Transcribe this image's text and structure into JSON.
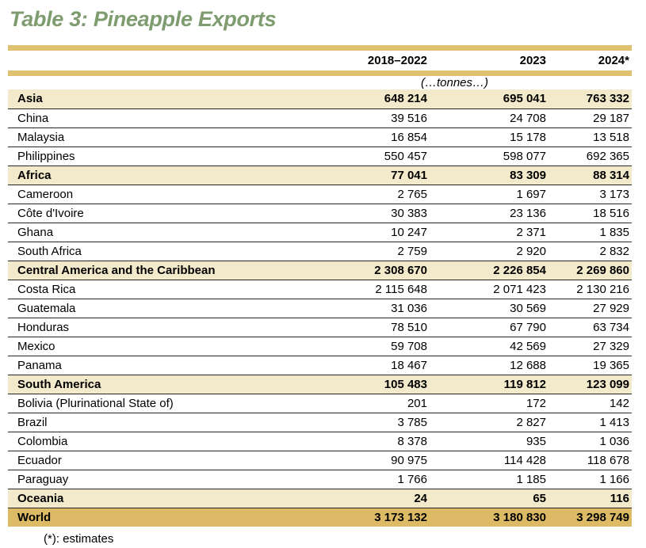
{
  "title": "Table 3: Pineapple Exports",
  "footnote": "(*): estimates",
  "table": {
    "unit_label": "(…tonnes…)",
    "columns": [
      "",
      "2018–2022",
      "2023",
      "2024*"
    ],
    "rows": [
      {
        "label": "Asia",
        "type": "region",
        "values": [
          "648 214",
          "695 041",
          "763 332"
        ]
      },
      {
        "label": "China",
        "type": "country",
        "values": [
          "39 516",
          "24 708",
          "29 187"
        ]
      },
      {
        "label": "Malaysia",
        "type": "country",
        "values": [
          "16 854",
          "15 178",
          "13 518"
        ]
      },
      {
        "label": "Philippines",
        "type": "country",
        "values": [
          "550 457",
          "598 077",
          "692 365"
        ]
      },
      {
        "label": "Africa",
        "type": "region",
        "values": [
          "77 041",
          "83 309",
          "88 314"
        ]
      },
      {
        "label": "Cameroon",
        "type": "country",
        "values": [
          "2 765",
          "1 697",
          "3 173"
        ]
      },
      {
        "label": "Côte d'Ivoire",
        "type": "country",
        "values": [
          "30 383",
          "23 136",
          "18 516"
        ]
      },
      {
        "label": "Ghana",
        "type": "country",
        "values": [
          "10 247",
          "2 371",
          "1 835"
        ]
      },
      {
        "label": "South Africa",
        "type": "country",
        "values": [
          "2 759",
          "2 920",
          "2 832"
        ]
      },
      {
        "label": "Central America and the Caribbean",
        "type": "region",
        "values": [
          "2 308 670",
          "2 226 854",
          "2 269 860"
        ]
      },
      {
        "label": "Costa Rica",
        "type": "country",
        "values": [
          "2 115 648",
          "2 071 423",
          "2 130 216"
        ]
      },
      {
        "label": "Guatemala",
        "type": "country",
        "values": [
          "31 036",
          "30 569",
          "27 929"
        ]
      },
      {
        "label": "Honduras",
        "type": "country",
        "values": [
          "78 510",
          "67 790",
          "63 734"
        ]
      },
      {
        "label": "Mexico",
        "type": "country",
        "values": [
          "59 708",
          "42 569",
          "27 329"
        ]
      },
      {
        "label": "Panama",
        "type": "country",
        "values": [
          "18 467",
          "12 688",
          "19 365"
        ]
      },
      {
        "label": "South America",
        "type": "region",
        "values": [
          "105 483",
          "119 812",
          "123 099"
        ]
      },
      {
        "label": "Bolivia (Plurinational State of)",
        "type": "country",
        "values": [
          "201",
          "172",
          "142"
        ]
      },
      {
        "label": "Brazil",
        "type": "country",
        "values": [
          "3 785",
          "2 827",
          "1 413"
        ]
      },
      {
        "label": "Colombia",
        "type": "country",
        "values": [
          "8 378",
          "935",
          "1 036"
        ]
      },
      {
        "label": "Ecuador",
        "type": "country",
        "values": [
          "90 975",
          "114 428",
          "118 678"
        ]
      },
      {
        "label": "Paraguay",
        "type": "country",
        "values": [
          "1 766",
          "1 185",
          "1 166"
        ]
      },
      {
        "label": "Oceania",
        "type": "region",
        "values": [
          "24",
          "65",
          "116"
        ]
      },
      {
        "label": "World",
        "type": "world",
        "values": [
          "3 173 132",
          "3 180 830",
          "3 298 749"
        ]
      }
    ]
  },
  "colors": {
    "title_green": "#7e9c6f",
    "bar_gold": "#dfc271",
    "world_gold": "#ddbb66",
    "section_cream": "#f3e9cb",
    "row_line": "#262626"
  },
  "chart_data": {
    "type": "table",
    "title": "Table 3: Pineapple Exports",
    "unit": "tonnes",
    "columns": [
      "2018–2022",
      "2023",
      "2024*"
    ],
    "footnote": "(*): estimates",
    "rows": [
      {
        "label": "Asia",
        "level": "region",
        "values": [
          648214,
          695041,
          763332
        ]
      },
      {
        "label": "China",
        "level": "country",
        "values": [
          39516,
          24708,
          29187
        ]
      },
      {
        "label": "Malaysia",
        "level": "country",
        "values": [
          16854,
          15178,
          13518
        ]
      },
      {
        "label": "Philippines",
        "level": "country",
        "values": [
          550457,
          598077,
          692365
        ]
      },
      {
        "label": "Africa",
        "level": "region",
        "values": [
          77041,
          83309,
          88314
        ]
      },
      {
        "label": "Cameroon",
        "level": "country",
        "values": [
          2765,
          1697,
          3173
        ]
      },
      {
        "label": "Côte d'Ivoire",
        "level": "country",
        "values": [
          30383,
          23136,
          18516
        ]
      },
      {
        "label": "Ghana",
        "level": "country",
        "values": [
          10247,
          2371,
          1835
        ]
      },
      {
        "label": "South Africa",
        "level": "country",
        "values": [
          2759,
          2920,
          2832
        ]
      },
      {
        "label": "Central America and the Caribbean",
        "level": "region",
        "values": [
          2308670,
          2226854,
          2269860
        ]
      },
      {
        "label": "Costa Rica",
        "level": "country",
        "values": [
          2115648,
          2071423,
          2130216
        ]
      },
      {
        "label": "Guatemala",
        "level": "country",
        "values": [
          31036,
          30569,
          27929
        ]
      },
      {
        "label": "Honduras",
        "level": "country",
        "values": [
          78510,
          67790,
          63734
        ]
      },
      {
        "label": "Mexico",
        "level": "country",
        "values": [
          59708,
          42569,
          27329
        ]
      },
      {
        "label": "Panama",
        "level": "country",
        "values": [
          18467,
          12688,
          19365
        ]
      },
      {
        "label": "South America",
        "level": "region",
        "values": [
          105483,
          119812,
          123099
        ]
      },
      {
        "label": "Bolivia (Plurinational State of)",
        "level": "country",
        "values": [
          201,
          172,
          142
        ]
      },
      {
        "label": "Brazil",
        "level": "country",
        "values": [
          3785,
          2827,
          1413
        ]
      },
      {
        "label": "Colombia",
        "level": "country",
        "values": [
          8378,
          935,
          1036
        ]
      },
      {
        "label": "Ecuador",
        "level": "country",
        "values": [
          90975,
          114428,
          118678
        ]
      },
      {
        "label": "Paraguay",
        "level": "country",
        "values": [
          1766,
          1185,
          1166
        ]
      },
      {
        "label": "Oceania",
        "level": "region",
        "values": [
          24,
          65,
          116
        ]
      },
      {
        "label": "World",
        "level": "world",
        "values": [
          3173132,
          3180830,
          3298749
        ]
      }
    ]
  }
}
